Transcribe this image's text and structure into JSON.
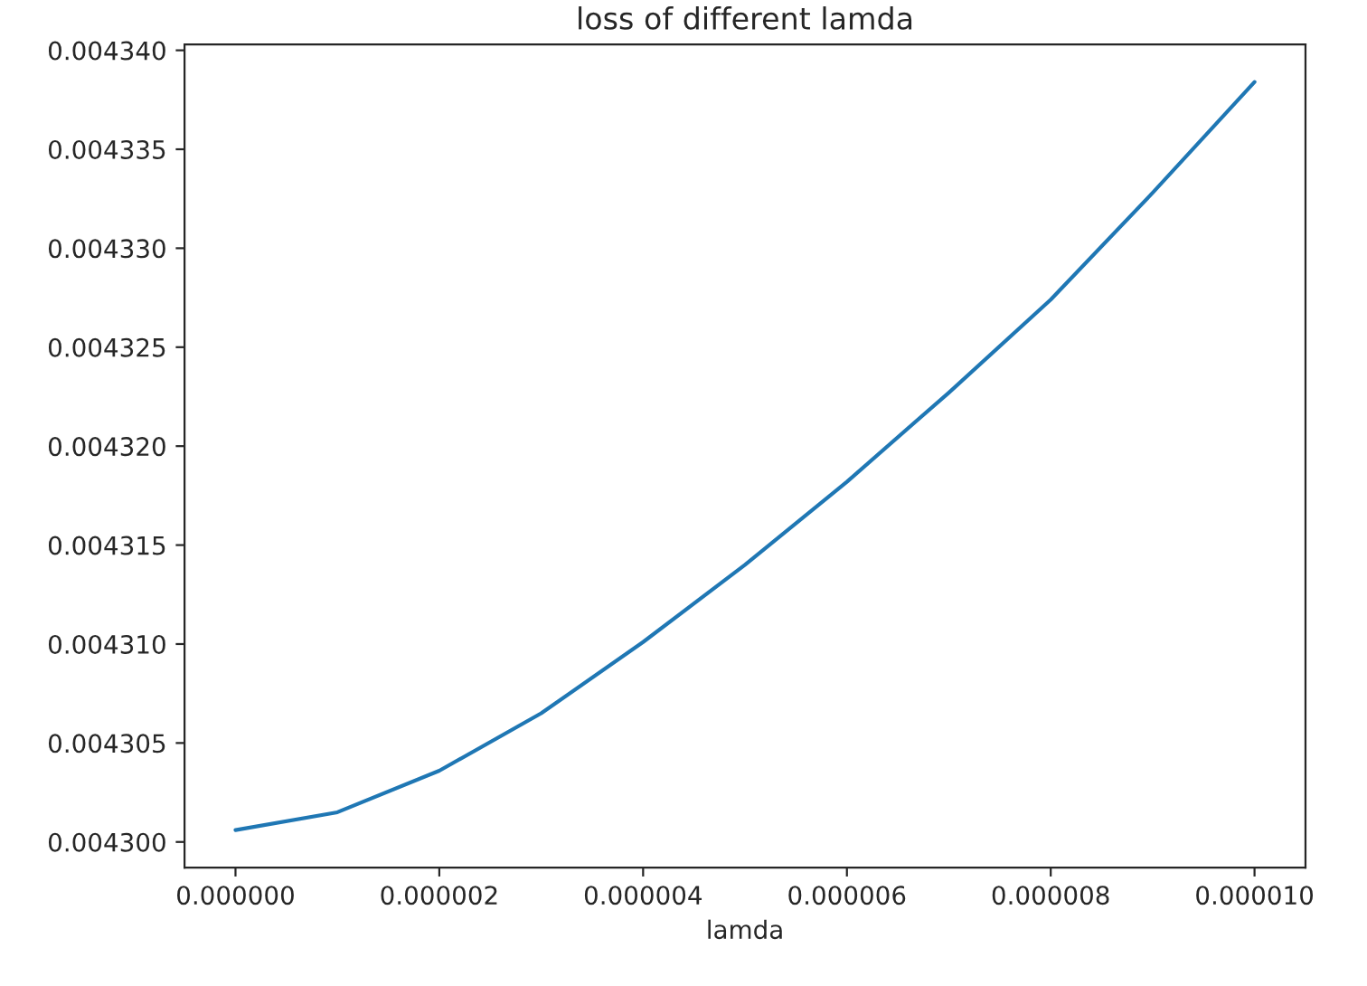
{
  "chart_data": {
    "type": "line",
    "title": "loss of different lamda",
    "xlabel": "lamda",
    "x": [
      0,
      1e-06,
      2e-06,
      3e-06,
      4e-06,
      5e-06,
      6e-06,
      7e-06,
      8e-06,
      9e-06,
      1e-05
    ],
    "series": [
      {
        "color": "#1f77b4",
        "values": [
          0.0043006,
          0.0043015,
          0.0043036,
          0.0043065,
          0.0043101,
          0.004314,
          0.0043182,
          0.0043227,
          0.0043274,
          0.0043328,
          0.0043384
        ]
      }
    ],
    "xlim": [
      -5e-07,
      1.05e-05
    ],
    "ylim": [
      0.0042987,
      0.0043403
    ],
    "xticks": [
      {
        "value": 0,
        "label": "0.000000"
      },
      {
        "value": 2e-06,
        "label": "0.000002"
      },
      {
        "value": 4e-06,
        "label": "0.000004"
      },
      {
        "value": 6e-06,
        "label": "0.000006"
      },
      {
        "value": 8e-06,
        "label": "0.000008"
      },
      {
        "value": 1e-05,
        "label": "0.000010"
      }
    ],
    "yticks": [
      {
        "value": 0.0043,
        "label": "0.004300"
      },
      {
        "value": 0.004305,
        "label": "0.004305"
      },
      {
        "value": 0.00431,
        "label": "0.004310"
      },
      {
        "value": 0.004315,
        "label": "0.004315"
      },
      {
        "value": 0.00432,
        "label": "0.004320"
      },
      {
        "value": 0.004325,
        "label": "0.004325"
      },
      {
        "value": 0.00433,
        "label": "0.004330"
      },
      {
        "value": 0.004335,
        "label": "0.004335"
      },
      {
        "value": 0.00434,
        "label": "0.004340"
      }
    ],
    "grid": false,
    "legend": false
  }
}
